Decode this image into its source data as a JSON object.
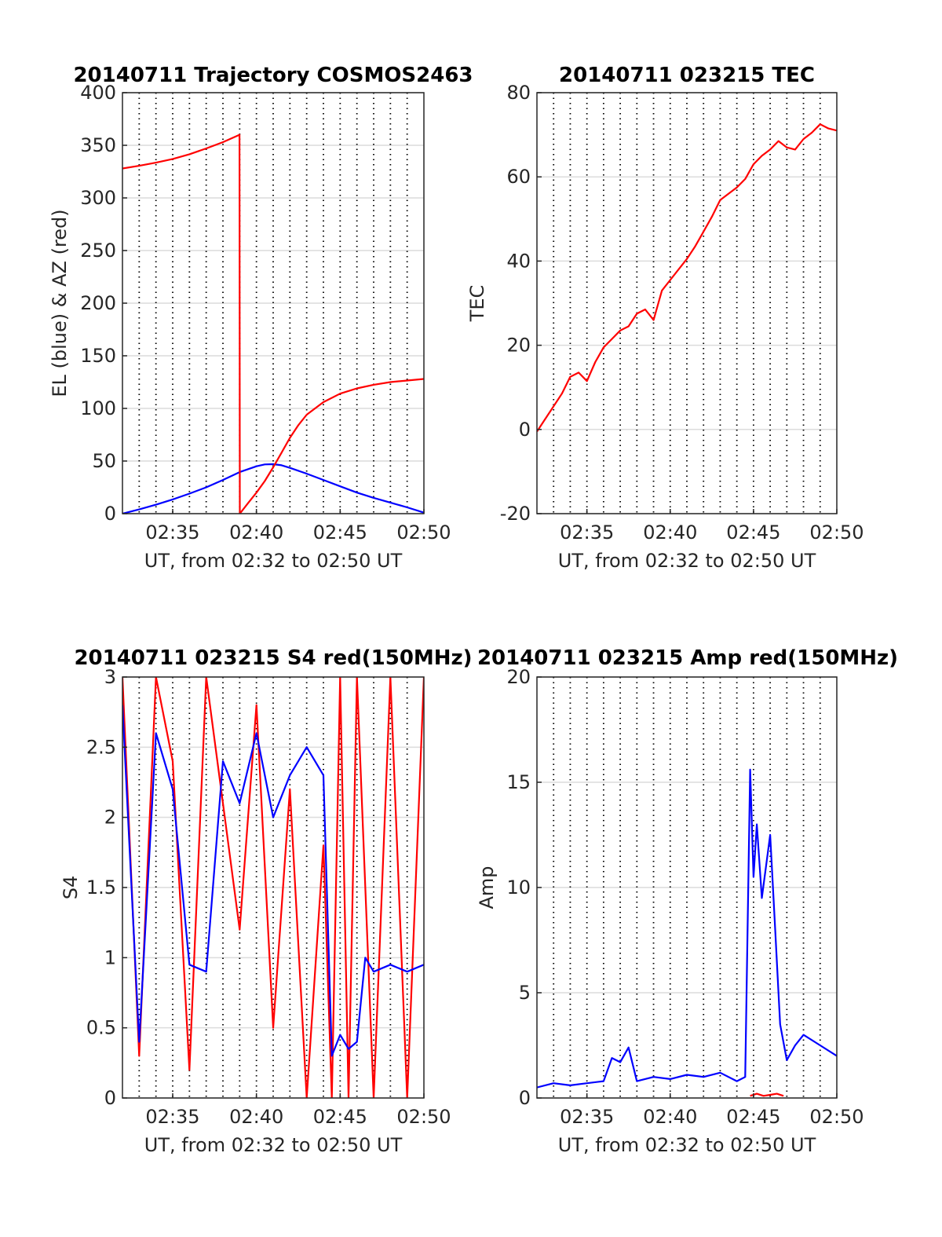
{
  "chart_data": [
    {
      "id": "trajectory",
      "type": "line",
      "title": "20140711 Trajectory COSMOS2463",
      "xlabel": "UT, from 02:32 to 02:50 UT",
      "ylabel": "EL (blue) & AZ (red)",
      "xlim": [
        0,
        18
      ],
      "ylim": [
        0,
        400
      ],
      "x_ticks": [
        {
          "v": 3,
          "label": "02:35"
        },
        {
          "v": 8,
          "label": "02:40"
        },
        {
          "v": 13,
          "label": "02:45"
        },
        {
          "v": 18,
          "label": "02:50"
        }
      ],
      "y_ticks": [
        {
          "v": 0,
          "label": "0"
        },
        {
          "v": 50,
          "label": "50"
        },
        {
          "v": 100,
          "label": "100"
        },
        {
          "v": 150,
          "label": "150"
        },
        {
          "v": 200,
          "label": "200"
        },
        {
          "v": 250,
          "label": "250"
        },
        {
          "v": 300,
          "label": "300"
        },
        {
          "v": 350,
          "label": "350"
        },
        {
          "v": 400,
          "label": "400"
        }
      ],
      "x_minor_grid": [
        1,
        2,
        4,
        5,
        6,
        7,
        9,
        10,
        11,
        12,
        14,
        15,
        16,
        17
      ],
      "grid": true,
      "series": [
        {
          "color": "#0000ff",
          "x": [
            0,
            1,
            2,
            3,
            4,
            5,
            6,
            7,
            8,
            8.5,
            9,
            9.5,
            10,
            11,
            12,
            13,
            14,
            15,
            16,
            17,
            18
          ],
          "y": [
            0,
            4,
            8.5,
            13.5,
            19,
            25,
            32,
            39.5,
            45,
            46.8,
            47,
            46,
            43.5,
            38,
            32,
            26,
            20,
            15,
            10.5,
            6,
            1
          ]
        },
        {
          "color": "#ff0000",
          "x": [
            0,
            1,
            2,
            3,
            4,
            5,
            6,
            6.99,
            7.01,
            7.5,
            8,
            8.5,
            9,
            9.5,
            10,
            10.5,
            11,
            12,
            13,
            14,
            15,
            16,
            17,
            18
          ],
          "y": [
            328,
            330.5,
            333.5,
            337,
            341.5,
            347,
            353,
            360,
            0,
            10,
            20,
            31,
            44,
            58,
            72,
            84,
            94,
            106,
            114,
            119,
            122.5,
            125,
            126.5,
            128
          ]
        }
      ]
    },
    {
      "id": "tec",
      "type": "line",
      "title": "20140711 023215 TEC",
      "xlabel": "UT, from 02:32 to 02:50 UT",
      "ylabel": "TEC",
      "xlim": [
        0,
        18
      ],
      "ylim": [
        -20,
        80
      ],
      "x_ticks": [
        {
          "v": 3,
          "label": "02:35"
        },
        {
          "v": 8,
          "label": "02:40"
        },
        {
          "v": 13,
          "label": "02:45"
        },
        {
          "v": 18,
          "label": "02:50"
        }
      ],
      "y_ticks": [
        {
          "v": -20,
          "label": "-20"
        },
        {
          "v": 0,
          "label": "0"
        },
        {
          "v": 20,
          "label": "20"
        },
        {
          "v": 40,
          "label": "40"
        },
        {
          "v": 60,
          "label": "60"
        },
        {
          "v": 80,
          "label": "80"
        }
      ],
      "x_minor_grid": [
        1,
        2,
        4,
        5,
        6,
        7,
        9,
        10,
        11,
        12,
        14,
        15,
        16,
        17
      ],
      "grid": true,
      "series": [
        {
          "color": "#ff0000",
          "x": [
            0,
            0.5,
            1,
            1.5,
            2,
            2.5,
            3,
            3.5,
            4,
            4.5,
            5,
            5.5,
            6,
            6.5,
            7,
            7.5,
            8,
            8.5,
            9,
            9.5,
            10,
            10.5,
            11,
            11.5,
            12,
            12.5,
            13,
            13.5,
            14,
            14.5,
            15,
            15.5,
            16,
            16.5,
            17,
            17.5,
            18
          ],
          "y": [
            -0.5,
            2.5,
            5.5,
            8.5,
            12.5,
            13.5,
            11.5,
            16,
            19.5,
            21.5,
            23.5,
            24.5,
            27.5,
            28.5,
            26,
            33,
            35.5,
            38,
            40.5,
            43.5,
            47,
            50.5,
            54.5,
            56,
            57.5,
            59.5,
            63,
            65,
            66.5,
            68.5,
            67,
            66.5,
            69,
            70.5,
            72.5,
            71.5,
            71
          ]
        }
      ]
    },
    {
      "id": "s4",
      "type": "line",
      "title": "20140711 023215 S4 red(150MHz)",
      "xlabel": "UT, from 02:32 to 02:50 UT",
      "ylabel": "S4",
      "xlim": [
        0,
        18
      ],
      "ylim": [
        0,
        3
      ],
      "x_ticks": [
        {
          "v": 3,
          "label": "02:35"
        },
        {
          "v": 8,
          "label": "02:40"
        },
        {
          "v": 13,
          "label": "02:45"
        },
        {
          "v": 18,
          "label": "02:50"
        }
      ],
      "y_ticks": [
        {
          "v": 0,
          "label": "0"
        },
        {
          "v": 0.5,
          "label": "0.5"
        },
        {
          "v": 1,
          "label": "1"
        },
        {
          "v": 1.5,
          "label": "1.5"
        },
        {
          "v": 2,
          "label": "2"
        },
        {
          "v": 2.5,
          "label": "2.5"
        },
        {
          "v": 3,
          "label": "3"
        }
      ],
      "x_minor_grid": [
        1,
        2,
        4,
        5,
        6,
        7,
        9,
        10,
        11,
        12,
        14,
        15,
        16,
        17
      ],
      "grid": true,
      "series": [
        {
          "color": "#ff0000",
          "x": [
            0,
            1,
            2,
            3,
            4,
            5,
            6,
            7,
            8,
            9,
            10,
            11,
            12,
            12.5,
            13,
            13.5,
            14,
            15,
            16,
            17,
            18
          ],
          "y": [
            3,
            0.3,
            3,
            2.4,
            0.2,
            3,
            2.1,
            1.2,
            2.8,
            0.5,
            2.2,
            0,
            1.8,
            0,
            3,
            0,
            3,
            0,
            3,
            0,
            3
          ]
        },
        {
          "color": "#0000ff",
          "x": [
            0,
            1,
            2,
            3,
            4,
            5,
            6,
            7,
            8,
            9,
            10,
            11,
            12,
            12.5,
            13,
            13.5,
            14,
            14.5,
            15,
            16,
            17,
            18
          ],
          "y": [
            2.8,
            0.4,
            2.6,
            2.2,
            0.95,
            0.9,
            2.4,
            2.1,
            2.6,
            2.0,
            2.3,
            2.5,
            2.3,
            0.3,
            0.45,
            0.35,
            0.4,
            1.0,
            0.9,
            0.95,
            0.9,
            0.95
          ]
        }
      ]
    },
    {
      "id": "amp",
      "type": "line",
      "title": "20140711 023215 Amp red(150MHz)",
      "xlabel": "UT, from 02:32 to 02:50 UT",
      "ylabel": "Amp",
      "xlim": [
        0,
        18
      ],
      "ylim": [
        0,
        20
      ],
      "x_ticks": [
        {
          "v": 3,
          "label": "02:35"
        },
        {
          "v": 8,
          "label": "02:40"
        },
        {
          "v": 13,
          "label": "02:45"
        },
        {
          "v": 18,
          "label": "02:50"
        }
      ],
      "y_ticks": [
        {
          "v": 0,
          "label": "0"
        },
        {
          "v": 5,
          "label": "5"
        },
        {
          "v": 10,
          "label": "10"
        },
        {
          "v": 15,
          "label": "15"
        },
        {
          "v": 20,
          "label": "20"
        }
      ],
      "x_minor_grid": [
        1,
        2,
        4,
        5,
        6,
        7,
        9,
        10,
        11,
        12,
        14,
        15,
        16,
        17
      ],
      "grid": true,
      "series": [
        {
          "color": "#ff0000",
          "x": [
            12.8,
            13.2,
            13.6,
            14.0,
            14.4,
            14.8
          ],
          "y": [
            0.1,
            0.2,
            0.1,
            0.15,
            0.2,
            0.1
          ]
        },
        {
          "color": "#0000ff",
          "x": [
            0,
            1,
            2,
            3,
            4,
            4.5,
            5,
            5.5,
            6,
            7,
            8,
            9,
            10,
            11,
            12,
            12.5,
            12.8,
            13,
            13.2,
            13.5,
            14,
            14.3,
            14.6,
            15,
            15.5,
            16,
            17,
            18
          ],
          "y": [
            0.5,
            0.7,
            0.6,
            0.7,
            0.8,
            1.9,
            1.7,
            2.4,
            0.8,
            1.0,
            0.9,
            1.1,
            1.0,
            1.2,
            0.8,
            1.0,
            15.6,
            10.5,
            13.0,
            9.5,
            12.5,
            8.0,
            3.5,
            1.8,
            2.5,
            3.0,
            2.5,
            2.0
          ]
        }
      ]
    }
  ]
}
